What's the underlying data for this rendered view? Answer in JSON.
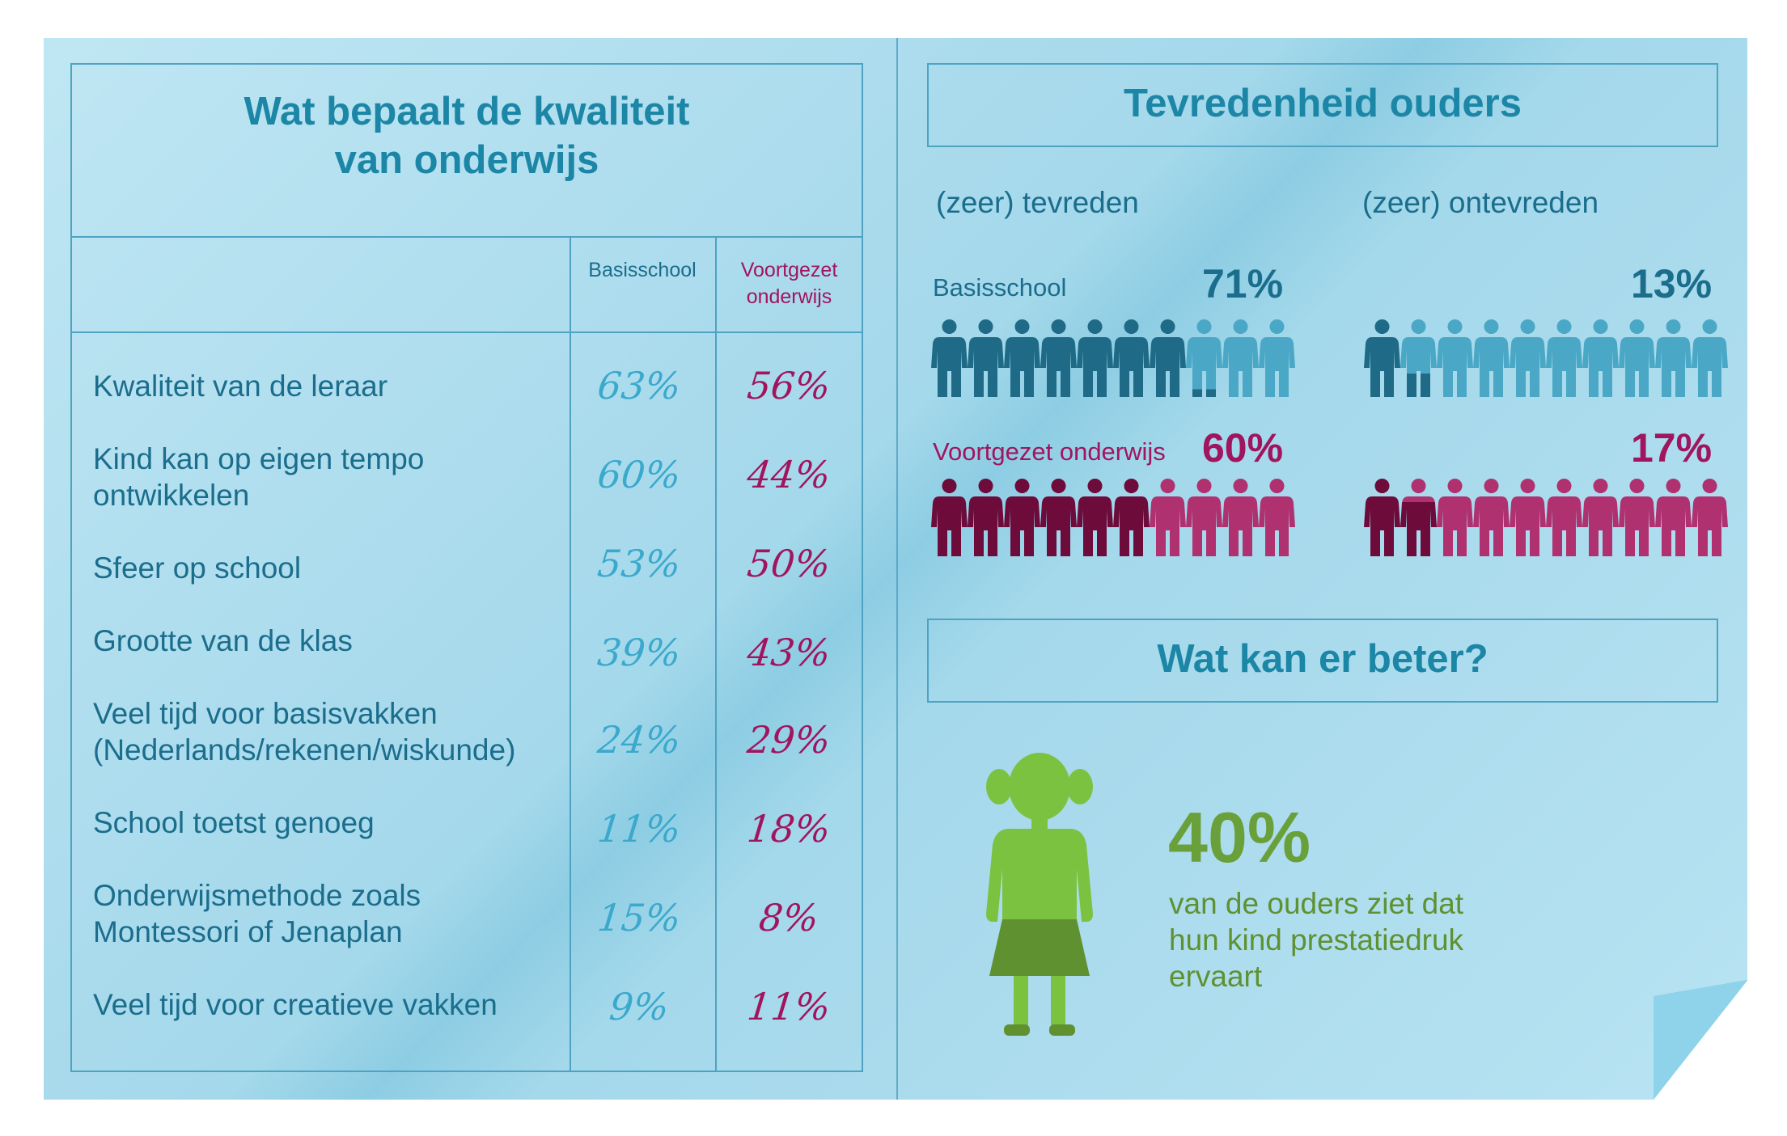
{
  "quality_table": {
    "title_line1": "Wat bepaalt de kwaliteit",
    "title_line2": "van onderwijs",
    "col_basis": "Basisschool",
    "col_vo_line1": "Voortgezet",
    "col_vo_line2": "onderwijs",
    "rows": [
      {
        "line1": "Kwaliteit van de leraar",
        "line2": "",
        "basis": "63%",
        "vo": "56%"
      },
      {
        "line1": "Kind kan op eigen tempo",
        "line2": "ontwikkelen",
        "basis": "60%",
        "vo": "44%"
      },
      {
        "line1": "Sfeer op school",
        "line2": "",
        "basis": "53%",
        "vo": "50%"
      },
      {
        "line1": "Grootte van de klas",
        "line2": "",
        "basis": "39%",
        "vo": "43%"
      },
      {
        "line1": "Veel tijd voor basisvakken",
        "line2": "(Nederlands/rekenen/wiskunde)",
        "basis": "24%",
        "vo": "29%"
      },
      {
        "line1": "School toetst genoeg",
        "line2": "",
        "basis": "11%",
        "vo": "18%"
      },
      {
        "line1": "Onderwijsmethode zoals",
        "line2": "Montessori of Jenaplan",
        "basis": "15%",
        "vo": "8%"
      },
      {
        "line1": "Veel tijd voor creatieve vakken",
        "line2": "",
        "basis": "9%",
        "vo": "11%"
      }
    ]
  },
  "satisfaction": {
    "title": "Tevredenheid ouders",
    "satisfied_label": "(zeer) tevreden",
    "dissatisfied_label": "(zeer) ontevreden",
    "basis_label": "Basisschool",
    "vo_label": "Voortgezet onderwijs",
    "basis_satisfied": "71%",
    "basis_dissatisfied": "13%",
    "vo_satisfied": "60%",
    "vo_dissatisfied": "17%",
    "basis_satisfied_value": 71,
    "basis_dissatisfied_value": 13,
    "vo_satisfied_value": 60,
    "vo_dissatisfied_value": 17
  },
  "improvement": {
    "title": "Wat kan er beter?",
    "percent": "40%",
    "line1": "van de ouders ziet dat",
    "line2": "hun kind prestatiedruk",
    "line3": "ervaart"
  },
  "colors": {
    "teal_dark": "#1f6a86",
    "teal_light": "#4aa8c6",
    "magenta_dark": "#6d0b3a",
    "magenta_light": "#b0316f",
    "green_light": "#7cc241",
    "green_dark": "#5f9131",
    "title_blue": "#1c86a6"
  },
  "icons": [
    "person-icon",
    "girl-icon"
  ]
}
